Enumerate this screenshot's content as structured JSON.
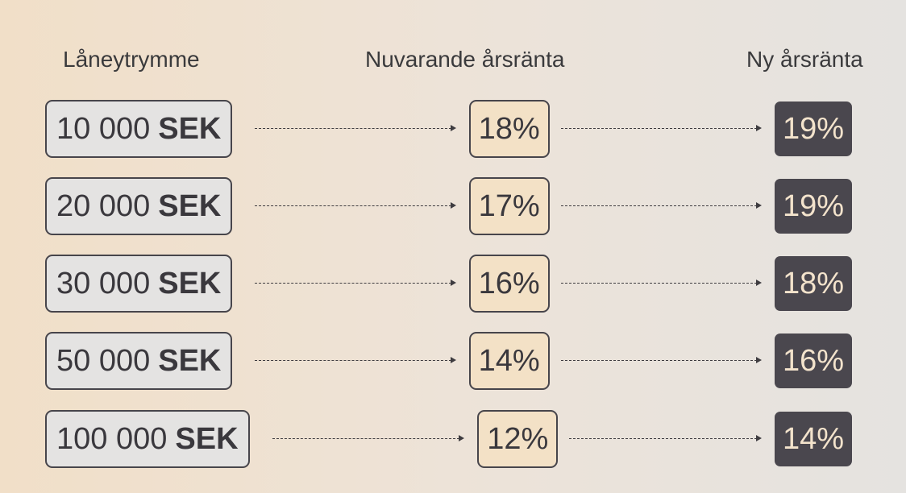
{
  "headers": {
    "amount": "Låneytrymme",
    "current": "Nuvarande årsränta",
    "new": "Ny årsränta"
  },
  "currency": "SEK",
  "rows": [
    {
      "amount": "10 000",
      "current": "18%",
      "new": "19%"
    },
    {
      "amount": "20 000",
      "current": "17%",
      "new": "19%"
    },
    {
      "amount": "30 000",
      "current": "16%",
      "new": "18%"
    },
    {
      "amount": "50 000",
      "current": "14%",
      "new": "16%"
    },
    {
      "amount": "100 000",
      "current": "12%",
      "new": "14%"
    }
  ],
  "colors": {
    "amount_box": "#e4e3e2",
    "current_box": "#f3e1c6",
    "new_box": "#4a474e",
    "new_text": "#f3e3cc"
  }
}
